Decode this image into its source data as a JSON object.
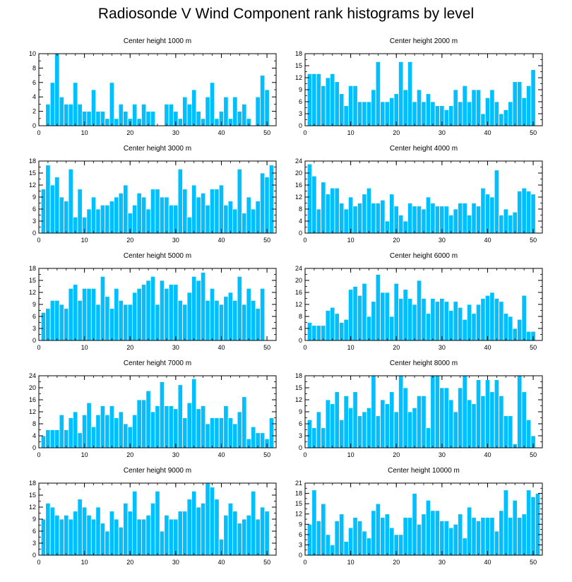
{
  "title": "Radiosonde V Wind Component rank histograms by level",
  "colors": {
    "bar": "#00bfff",
    "bar_stroke": "#ffffff",
    "axis": "#000000"
  },
  "chart_data": [
    {
      "type": "bar",
      "title": "Center height 1000 m",
      "xlim": [
        0,
        52
      ],
      "xticks": [
        0,
        10,
        20,
        30,
        40,
        50
      ],
      "ylim": [
        0,
        10
      ],
      "yticks": [
        0,
        2,
        4,
        6,
        8,
        10
      ],
      "values": [
        0,
        3,
        6,
        10,
        4,
        3,
        3,
        6,
        3,
        2,
        2,
        5,
        2,
        2,
        1,
        6,
        1,
        3,
        2,
        1,
        3,
        1,
        3,
        2,
        2,
        0,
        0,
        3,
        3,
        2,
        1,
        4,
        3,
        5,
        2,
        1,
        4,
        6,
        1,
        2,
        4,
        1,
        4,
        2,
        3,
        1,
        0,
        4,
        7,
        5
      ]
    },
    {
      "type": "bar",
      "title": "Center height 2000 m",
      "xlim": [
        0,
        52
      ],
      "xticks": [
        0,
        10,
        20,
        30,
        40,
        50
      ],
      "ylim": [
        0,
        18
      ],
      "yticks": [
        0,
        3,
        6,
        9,
        12,
        15,
        18
      ],
      "values": [
        13,
        13,
        13,
        10,
        12,
        13,
        11,
        8,
        5,
        10,
        10,
        6,
        6,
        6,
        9,
        16,
        6,
        6,
        7,
        8,
        16,
        9,
        16,
        6,
        9,
        6,
        8,
        6,
        5,
        5,
        4,
        5,
        9,
        6,
        10,
        6,
        9,
        9,
        3,
        7,
        9,
        6,
        3,
        4,
        6,
        11,
        11,
        7,
        10,
        14
      ]
    },
    {
      "type": "bar",
      "title": "Center height 3000 m",
      "xlim": [
        0,
        52
      ],
      "xticks": [
        0,
        10,
        20,
        30,
        40,
        50
      ],
      "ylim": [
        0,
        18
      ],
      "yticks": [
        0,
        3,
        6,
        9,
        12,
        15,
        18
      ],
      "values": [
        11,
        17,
        12,
        14,
        9,
        8,
        16,
        4,
        11,
        4,
        6,
        9,
        6,
        7,
        7,
        8,
        9,
        10,
        12,
        5,
        7,
        10,
        9,
        6,
        11,
        11,
        9,
        9,
        7,
        7,
        16,
        11,
        4,
        12,
        9,
        10,
        7,
        11,
        11,
        12,
        7,
        8,
        6,
        16,
        5,
        9,
        6,
        8,
        15,
        14,
        17
      ]
    },
    {
      "type": "bar",
      "title": "Center height 4000 m",
      "xlim": [
        0,
        52
      ],
      "xticks": [
        0,
        10,
        20,
        30,
        40,
        50
      ],
      "ylim": [
        0,
        24
      ],
      "yticks": [
        0,
        4,
        8,
        12,
        16,
        20,
        24
      ],
      "values": [
        23,
        19,
        8,
        17,
        13,
        15,
        15,
        10,
        8,
        12,
        9,
        10,
        13,
        15,
        10,
        10,
        11,
        4,
        13,
        9,
        6,
        4,
        10,
        9,
        9,
        8,
        12,
        10,
        9,
        9,
        9,
        6,
        8,
        10,
        10,
        6,
        10,
        9,
        15,
        13,
        12,
        21,
        6,
        8,
        6,
        7,
        14,
        15,
        14,
        13
      ]
    },
    {
      "type": "bar",
      "title": "Center height 5000 m",
      "xlim": [
        0,
        52
      ],
      "xticks": [
        0,
        10,
        20,
        30,
        40,
        50
      ],
      "ylim": [
        0,
        18
      ],
      "yticks": [
        0,
        3,
        6,
        9,
        12,
        15,
        18
      ],
      "values": [
        7,
        8,
        10,
        10,
        9,
        8,
        13,
        14,
        10,
        13,
        13,
        13,
        9,
        16,
        11,
        8,
        13,
        10,
        9,
        9,
        12,
        13,
        14,
        15,
        16,
        9,
        15,
        13,
        14,
        14,
        10,
        9,
        12,
        16,
        15,
        17,
        10,
        13,
        10,
        9,
        11,
        12,
        10,
        16,
        9,
        13,
        10,
        8,
        13
      ]
    },
    {
      "type": "bar",
      "title": "Center height 6000 m",
      "xlim": [
        0,
        52
      ],
      "xticks": [
        0,
        10,
        20,
        30,
        40,
        50
      ],
      "ylim": [
        0,
        24
      ],
      "yticks": [
        0,
        4,
        8,
        12,
        16,
        20,
        24
      ],
      "values": [
        6,
        5,
        5,
        5,
        10,
        11,
        9,
        6,
        7,
        17,
        18,
        15,
        19,
        8,
        13,
        22,
        16,
        16,
        8,
        19,
        14,
        17,
        14,
        12,
        20,
        14,
        9,
        14,
        13,
        14,
        13,
        10,
        13,
        11,
        7,
        12,
        9,
        12,
        14,
        15,
        16,
        14,
        13,
        9,
        8,
        4,
        7,
        15,
        3,
        3
      ]
    },
    {
      "type": "bar",
      "title": "Center height 7000 m",
      "xlim": [
        0,
        52
      ],
      "xticks": [
        0,
        10,
        20,
        30,
        40,
        50
      ],
      "ylim": [
        0,
        24
      ],
      "yticks": [
        0,
        4,
        8,
        12,
        16,
        20,
        24
      ],
      "values": [
        4,
        6,
        6,
        6,
        11,
        6,
        10,
        12,
        5,
        11,
        15,
        7,
        11,
        14,
        11,
        14,
        10,
        12,
        8,
        7,
        11,
        16,
        16,
        19,
        12,
        14,
        22,
        14,
        14,
        13,
        21,
        10,
        15,
        23,
        13,
        14,
        8,
        10,
        10,
        10,
        14,
        10,
        8,
        12,
        17,
        3,
        7,
        5,
        5,
        3,
        10
      ]
    },
    {
      "type": "bar",
      "title": "Center height 8000 m",
      "xlim": [
        0,
        52
      ],
      "xticks": [
        0,
        10,
        20,
        30,
        40,
        50
      ],
      "ylim": [
        0,
        18
      ],
      "yticks": [
        0,
        3,
        6,
        9,
        12,
        15,
        18
      ],
      "values": [
        7,
        5,
        9,
        5,
        12,
        11,
        14,
        7,
        13,
        10,
        14,
        8,
        9,
        10,
        18,
        8,
        12,
        11,
        14,
        9,
        18,
        15,
        9,
        10,
        13,
        13,
        5,
        18,
        18,
        15,
        15,
        12,
        9,
        15,
        18,
        12,
        11,
        17,
        13,
        17,
        14,
        17,
        13,
        8,
        8,
        1,
        18,
        14,
        7,
        3
      ]
    },
    {
      "type": "bar",
      "title": "Center height 9000 m",
      "xlim": [
        0,
        52
      ],
      "xticks": [
        0,
        10,
        20,
        30,
        40,
        50
      ],
      "ylim": [
        0,
        18
      ],
      "yticks": [
        0,
        3,
        6,
        9,
        12,
        15,
        18
      ],
      "values": [
        9,
        13,
        12,
        10,
        9,
        10,
        9,
        11,
        14,
        12,
        10,
        9,
        12,
        8,
        6,
        11,
        9,
        7,
        13,
        11,
        16,
        9,
        9,
        10,
        13,
        16,
        6,
        10,
        9,
        9,
        11,
        11,
        14,
        16,
        12,
        13,
        18,
        17,
        14,
        4,
        10,
        13,
        11,
        8,
        9,
        10,
        16,
        9,
        12,
        11
      ]
    },
    {
      "type": "bar",
      "title": "Center height 10000 m",
      "xlim": [
        0,
        52
      ],
      "xticks": [
        0,
        10,
        20,
        30,
        40,
        50
      ],
      "ylim": [
        0,
        21
      ],
      "yticks": [
        0,
        3,
        6,
        9,
        12,
        15,
        18,
        21
      ],
      "values": [
        9,
        19,
        10,
        15,
        6,
        3,
        10,
        12,
        4,
        8,
        11,
        10,
        7,
        5,
        13,
        15,
        11,
        12,
        8,
        6,
        6,
        11,
        11,
        18,
        9,
        12,
        16,
        13,
        13,
        10,
        10,
        8,
        9,
        12,
        5,
        14,
        11,
        10,
        11,
        11,
        11,
        7,
        13,
        19,
        11,
        16,
        11,
        12,
        19,
        17,
        18
      ]
    }
  ]
}
